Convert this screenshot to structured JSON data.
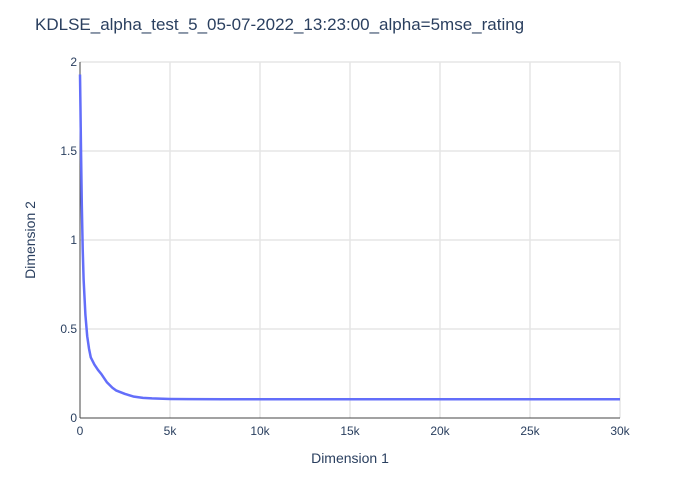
{
  "chart_data": {
    "type": "line",
    "title": "KDLSE_alpha_test_5_05-07-2022_13:23:00_alpha=5mse_rating",
    "xlabel": "Dimension 1",
    "ylabel": "Dimension 2",
    "xlim": [
      0,
      30000
    ],
    "ylim": [
      0,
      2
    ],
    "x_ticks": [
      0,
      5000,
      10000,
      15000,
      20000,
      25000,
      30000
    ],
    "x_tick_labels": [
      "0",
      "5k",
      "10k",
      "15k",
      "20k",
      "25k",
      "30k"
    ],
    "y_ticks": [
      0,
      0.5,
      1,
      1.5,
      2
    ],
    "y_tick_labels": [
      "0",
      "0.5",
      "1",
      "1.5",
      "2"
    ],
    "grid": true,
    "legend": "none",
    "series": [
      {
        "color": "#636efa",
        "x": [
          0,
          25,
          50,
          100,
          150,
          200,
          300,
          400,
          500,
          600,
          800,
          1000,
          1200,
          1500,
          1800,
          2000,
          2500,
          3000,
          3500,
          4000,
          5000,
          6000,
          8000,
          10000,
          12000,
          15000,
          18000,
          20000,
          22000,
          25000,
          28000,
          30000
        ],
        "y": [
          1.93,
          1.75,
          1.55,
          1.2,
          0.95,
          0.78,
          0.58,
          0.46,
          0.39,
          0.34,
          0.3,
          0.27,
          0.245,
          0.2,
          0.17,
          0.155,
          0.135,
          0.12,
          0.113,
          0.11,
          0.107,
          0.106,
          0.105,
          0.105,
          0.105,
          0.105,
          0.105,
          0.105,
          0.105,
          0.105,
          0.105,
          0.105
        ]
      }
    ]
  }
}
